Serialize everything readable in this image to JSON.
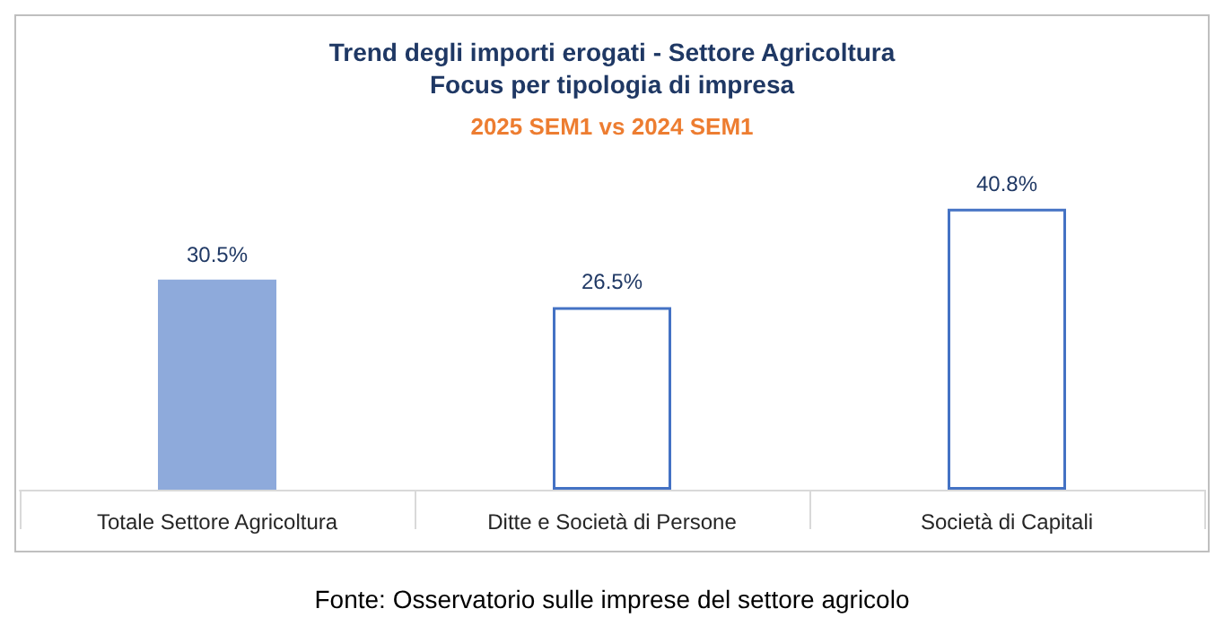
{
  "chart_data": {
    "type": "bar",
    "title": "Trend degli importi erogati - Settore Agricoltura",
    "subtitle": "Focus per tipologia di impresa",
    "annotations": [
      "2025 SEM1 vs 2024 SEM1",
      "Fonte: Osservatorio sulle imprese del settore agricolo"
    ],
    "categories": [
      "Totale Settore Agricoltura",
      "Ditte e Società di Persone",
      "Società di Capitali"
    ],
    "values": [
      30.5,
      26.5,
      40.8
    ],
    "colors": [
      "#8eaadb",
      "#ffffff",
      "#ffffff"
    ],
    "value_labels": [
      "30.5%",
      "26.5%",
      "40.8%"
    ],
    "tick_labels": "x"
  }
}
